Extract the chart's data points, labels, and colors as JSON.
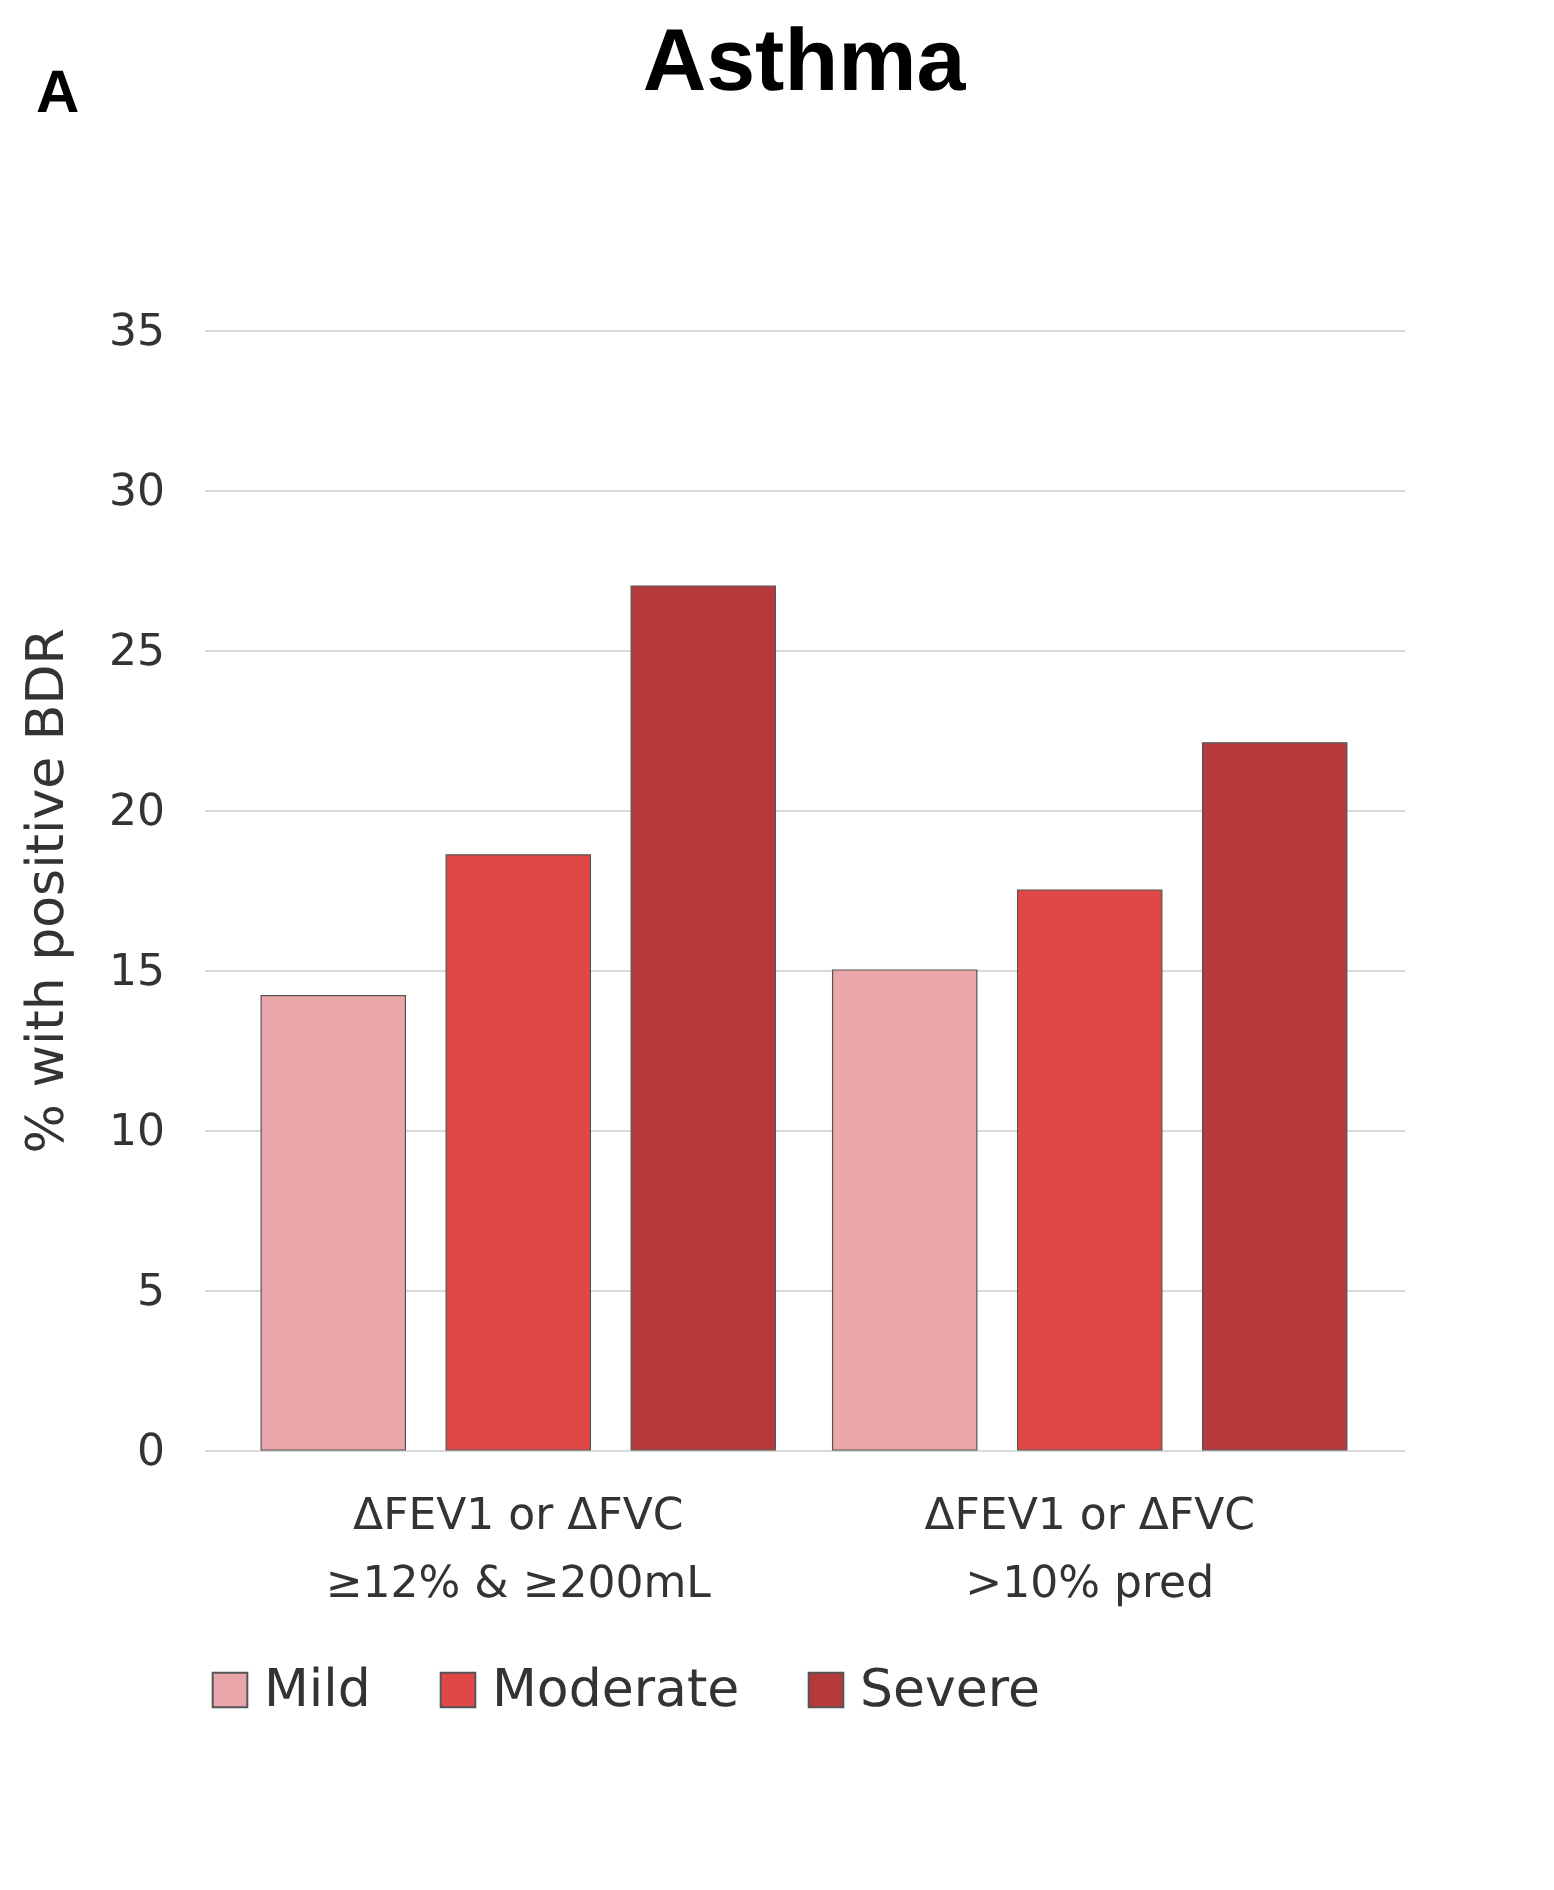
{
  "chart_data": {
    "type": "bar",
    "title": "Asthma",
    "annotations": [
      "A"
    ],
    "ylabel": "% with positive BDR",
    "categories": [
      "ΔFEV1 or ΔFVC\n≥12% & ≥200mL",
      "ΔFEV1 or ΔFVC\n>10% pred"
    ],
    "series": [
      {
        "name": "Mild",
        "color": "#eaa6a9",
        "values": [
          14.2,
          15.0
        ]
      },
      {
        "name": "Moderate",
        "color": "#e04848",
        "values": [
          18.6,
          17.5
        ]
      },
      {
        "name": "Severe",
        "color": "#b73a3a",
        "values": [
          27.0,
          22.1
        ]
      }
    ],
    "ylim": [
      0,
      35
    ],
    "yticks": [
      0,
      5,
      10,
      15,
      20,
      25,
      30,
      35
    ],
    "grid": "y",
    "legend": "bottom"
  }
}
